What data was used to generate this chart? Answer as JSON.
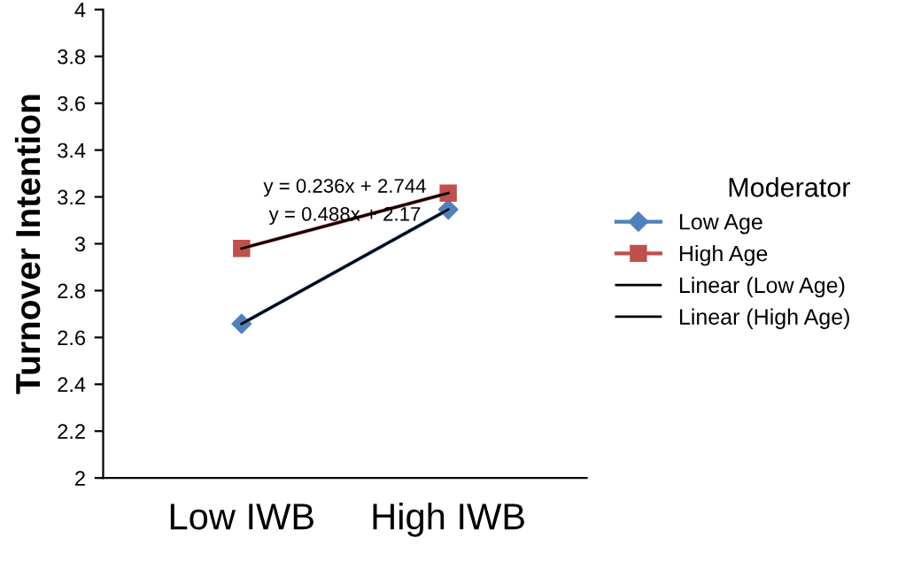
{
  "chart_data": {
    "type": "line",
    "ylabel": "Turnover Intention",
    "categories": [
      "Low IWB",
      "High IWB"
    ],
    "series": [
      {
        "name": "Low Age",
        "color": "#4f81bd",
        "values": [
          2.658,
          3.146
        ],
        "marker": "diamond"
      },
      {
        "name": "High Age",
        "color": "#c0504d",
        "values": [
          2.98,
          3.216
        ],
        "marker": "square"
      },
      {
        "name": "Linear (Low Age)",
        "color": "#000000",
        "values": [
          2.658,
          3.146
        ],
        "marker": "none"
      },
      {
        "name": "Linear (High Age)",
        "color": "#000000",
        "values": [
          2.98,
          3.216
        ],
        "marker": "none"
      }
    ],
    "ylim": [
      2,
      4
    ],
    "yticks": [
      2,
      2.2,
      2.4,
      2.6,
      2.8,
      3,
      3.2,
      3.4,
      3.6,
      3.8,
      4
    ],
    "legend": "right",
    "legend_title": "Moderator",
    "grid": false,
    "annotations": [
      "y = 0.236x + 2.744",
      "y = 0.488x + 2.17"
    ]
  }
}
